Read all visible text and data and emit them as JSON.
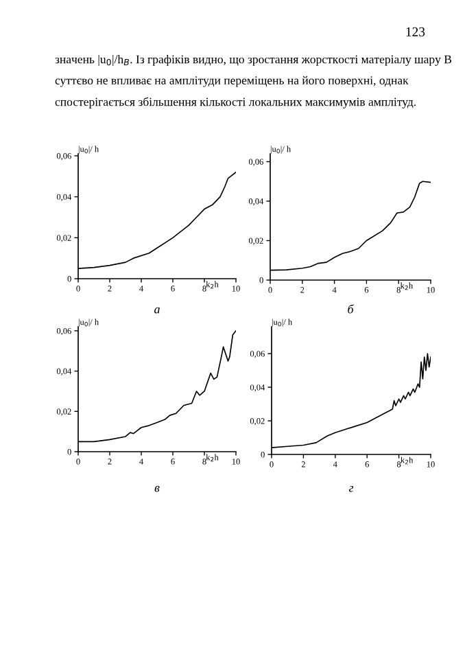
{
  "chart_data": [
    {
      "type": "line",
      "ylabel": "|u$_{0}$|/ h",
      "xlabel": "k$_{2}$h",
      "annotations": [
        "123",
        "значень |u$_{0}$|/h$_{B}$. Із графіків видно, що зростання жорсткості матеріалу шару B суттєво не впливає на амплітуди переміщень на його поверхні, однак спостерігається збільшення кількості локальних максимумів амплітуд.",
        "а"
      ],
      "xlim": [
        0,
        10
      ],
      "ylim": [
        0,
        0.061
      ],
      "xticks": [
        0,
        2,
        4,
        6,
        8,
        10
      ],
      "yticks": [
        0,
        {
          "value": 0.02,
          "label": "0,02"
        },
        {
          "value": 0.04,
          "label": "0,04"
        },
        {
          "value": 0.06,
          "label": "0,06"
        }
      ],
      "grid": false,
      "legend": false,
      "series": [
        {
          "color": "#000000",
          "x": [
            0,
            1,
            2,
            3,
            3.5,
            4.5,
            5,
            6,
            7,
            7.5,
            8,
            8.5,
            9,
            9.3,
            9.5,
            10
          ],
          "values": [
            0.005,
            0.0055,
            0.0065,
            0.008,
            0.01,
            0.0125,
            0.015,
            0.02,
            0.026,
            0.03,
            0.034,
            0.036,
            0.04,
            0.045,
            0.049,
            0.052
          ]
        }
      ]
    },
    {
      "type": "line",
      "ylabel": "|u$_{0}$|/ h",
      "xlabel": "k$_{2}$h",
      "annotations": [
        "б"
      ],
      "xlim": [
        0,
        10
      ],
      "ylim": [
        0,
        0.064
      ],
      "xticks": [
        0,
        2,
        4,
        6,
        8,
        10
      ],
      "yticks": [
        0,
        {
          "value": 0.02,
          "label": "0,02"
        },
        {
          "value": 0.04,
          "label": "0,04"
        },
        {
          "value": 0.06,
          "label": "0,06"
        }
      ],
      "grid": false,
      "legend": false,
      "series": [
        {
          "color": "#000000",
          "x": [
            0,
            1,
            2,
            2.5,
            3,
            3.5,
            4,
            4.5,
            5,
            5.5,
            6,
            7,
            7.5,
            7.9,
            8.3,
            8.7,
            9,
            9.3,
            9.5,
            10
          ],
          "values": [
            0.005,
            0.0052,
            0.006,
            0.0068,
            0.0085,
            0.009,
            0.0115,
            0.0135,
            0.0145,
            0.016,
            0.02,
            0.025,
            0.029,
            0.034,
            0.0345,
            0.037,
            0.042,
            0.049,
            0.05,
            0.0495
          ]
        }
      ]
    },
    {
      "type": "line",
      "ylabel": "|u$_{0}$|/ h",
      "xlabel": "k$_{2}$h",
      "annotations": [
        "в"
      ],
      "xlim": [
        0,
        10
      ],
      "ylim": [
        0,
        0.062
      ],
      "xticks": [
        0,
        2,
        4,
        6,
        8,
        10
      ],
      "yticks": [
        0,
        {
          "value": 0.02,
          "label": "0,02"
        },
        {
          "value": 0.04,
          "label": "0,04"
        },
        {
          "value": 0.06,
          "label": "0,06"
        }
      ],
      "grid": false,
      "legend": false,
      "series": [
        {
          "color": "#000000",
          "x": [
            0,
            1,
            2,
            3,
            3.3,
            3.5,
            4,
            4.5,
            5,
            5.5,
            5.8,
            6.2,
            6.7,
            7.2,
            7.5,
            7.7,
            8,
            8.4,
            8.6,
            8.8,
            9.1,
            9.2,
            9.5,
            9.6,
            9.8,
            10
          ],
          "values": [
            0.005,
            0.005,
            0.006,
            0.0075,
            0.0095,
            0.009,
            0.012,
            0.013,
            0.0145,
            0.016,
            0.018,
            0.019,
            0.023,
            0.024,
            0.03,
            0.028,
            0.03,
            0.039,
            0.036,
            0.037,
            0.048,
            0.052,
            0.045,
            0.047,
            0.058,
            0.06
          ]
        }
      ]
    },
    {
      "type": "line",
      "ylabel": "|u$_{0}$|/ h",
      "xlabel": "k$_{2}$h",
      "annotations": [
        "г"
      ],
      "xlim": [
        0,
        10
      ],
      "ylim": [
        0,
        0.076
      ],
      "xticks": [
        0,
        2,
        4,
        6,
        8,
        10
      ],
      "yticks": [
        0,
        {
          "value": 0.02,
          "label": "0,02"
        },
        {
          "value": 0.04,
          "label": "0,04"
        },
        {
          "value": 0.06,
          "label": "0,06"
        }
      ],
      "grid": false,
      "legend": false,
      "series": [
        {
          "color": "#000000",
          "x": [
            0,
            1,
            2,
            2.8,
            3.5,
            4,
            5,
            6,
            7,
            7.6,
            7.7,
            7.8,
            8,
            8.1,
            8.3,
            8.4,
            8.6,
            8.7,
            8.9,
            9.0,
            9.2,
            9.3,
            9.4,
            9.5,
            9.6,
            9.7,
            9.8,
            9.9,
            10
          ],
          "values": [
            0.004,
            0.0048,
            0.0055,
            0.007,
            0.011,
            0.013,
            0.016,
            0.019,
            0.024,
            0.027,
            0.032,
            0.029,
            0.033,
            0.031,
            0.035,
            0.033,
            0.037,
            0.035,
            0.039,
            0.037,
            0.042,
            0.04,
            0.055,
            0.045,
            0.058,
            0.05,
            0.06,
            0.052,
            0.058
          ]
        }
      ]
    }
  ]
}
